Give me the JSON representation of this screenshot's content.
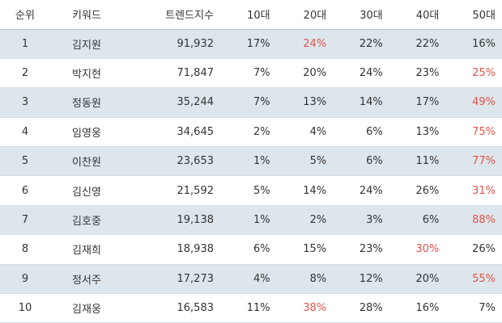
{
  "colors": {
    "highlight": "#e0544a",
    "row_shade": "#dde6ec"
  },
  "table": {
    "headers": {
      "rank": "순위",
      "keyword": "키워드",
      "score": "트렌드지수",
      "a10": "10대",
      "a20": "20대",
      "a30": "30대",
      "a40": "40대",
      "a50": "50대"
    },
    "rows": [
      {
        "rank": "1",
        "keyword": "김지원",
        "score": "91,932",
        "a10": "17%",
        "a20": "24%",
        "a30": "22%",
        "a40": "22%",
        "a50": "16%",
        "highlight": "a20"
      },
      {
        "rank": "2",
        "keyword": "박지현",
        "score": "71,847",
        "a10": "7%",
        "a20": "20%",
        "a30": "24%",
        "a40": "23%",
        "a50": "25%",
        "highlight": "a50"
      },
      {
        "rank": "3",
        "keyword": "정동원",
        "score": "35,244",
        "a10": "7%",
        "a20": "13%",
        "a30": "14%",
        "a40": "17%",
        "a50": "49%",
        "highlight": "a50"
      },
      {
        "rank": "4",
        "keyword": "임영웅",
        "score": "34,645",
        "a10": "2%",
        "a20": "4%",
        "a30": "6%",
        "a40": "13%",
        "a50": "75%",
        "highlight": "a50"
      },
      {
        "rank": "5",
        "keyword": "이찬원",
        "score": "23,653",
        "a10": "1%",
        "a20": "5%",
        "a30": "6%",
        "a40": "11%",
        "a50": "77%",
        "highlight": "a50"
      },
      {
        "rank": "6",
        "keyword": "김신영",
        "score": "21,592",
        "a10": "5%",
        "a20": "14%",
        "a30": "24%",
        "a40": "26%",
        "a50": "31%",
        "highlight": "a50"
      },
      {
        "rank": "7",
        "keyword": "김호중",
        "score": "19,138",
        "a10": "1%",
        "a20": "2%",
        "a30": "3%",
        "a40": "6%",
        "a50": "88%",
        "highlight": "a50"
      },
      {
        "rank": "8",
        "keyword": "김재희",
        "score": "18,938",
        "a10": "6%",
        "a20": "15%",
        "a30": "23%",
        "a40": "30%",
        "a50": "26%",
        "highlight": "a40"
      },
      {
        "rank": "9",
        "keyword": "정서주",
        "score": "17,273",
        "a10": "4%",
        "a20": "8%",
        "a30": "12%",
        "a40": "20%",
        "a50": "55%",
        "highlight": "a50"
      },
      {
        "rank": "10",
        "keyword": "김재웅",
        "score": "16,583",
        "a10": "11%",
        "a20": "38%",
        "a30": "28%",
        "a40": "16%",
        "a50": "7%",
        "highlight": "a20"
      }
    ]
  }
}
